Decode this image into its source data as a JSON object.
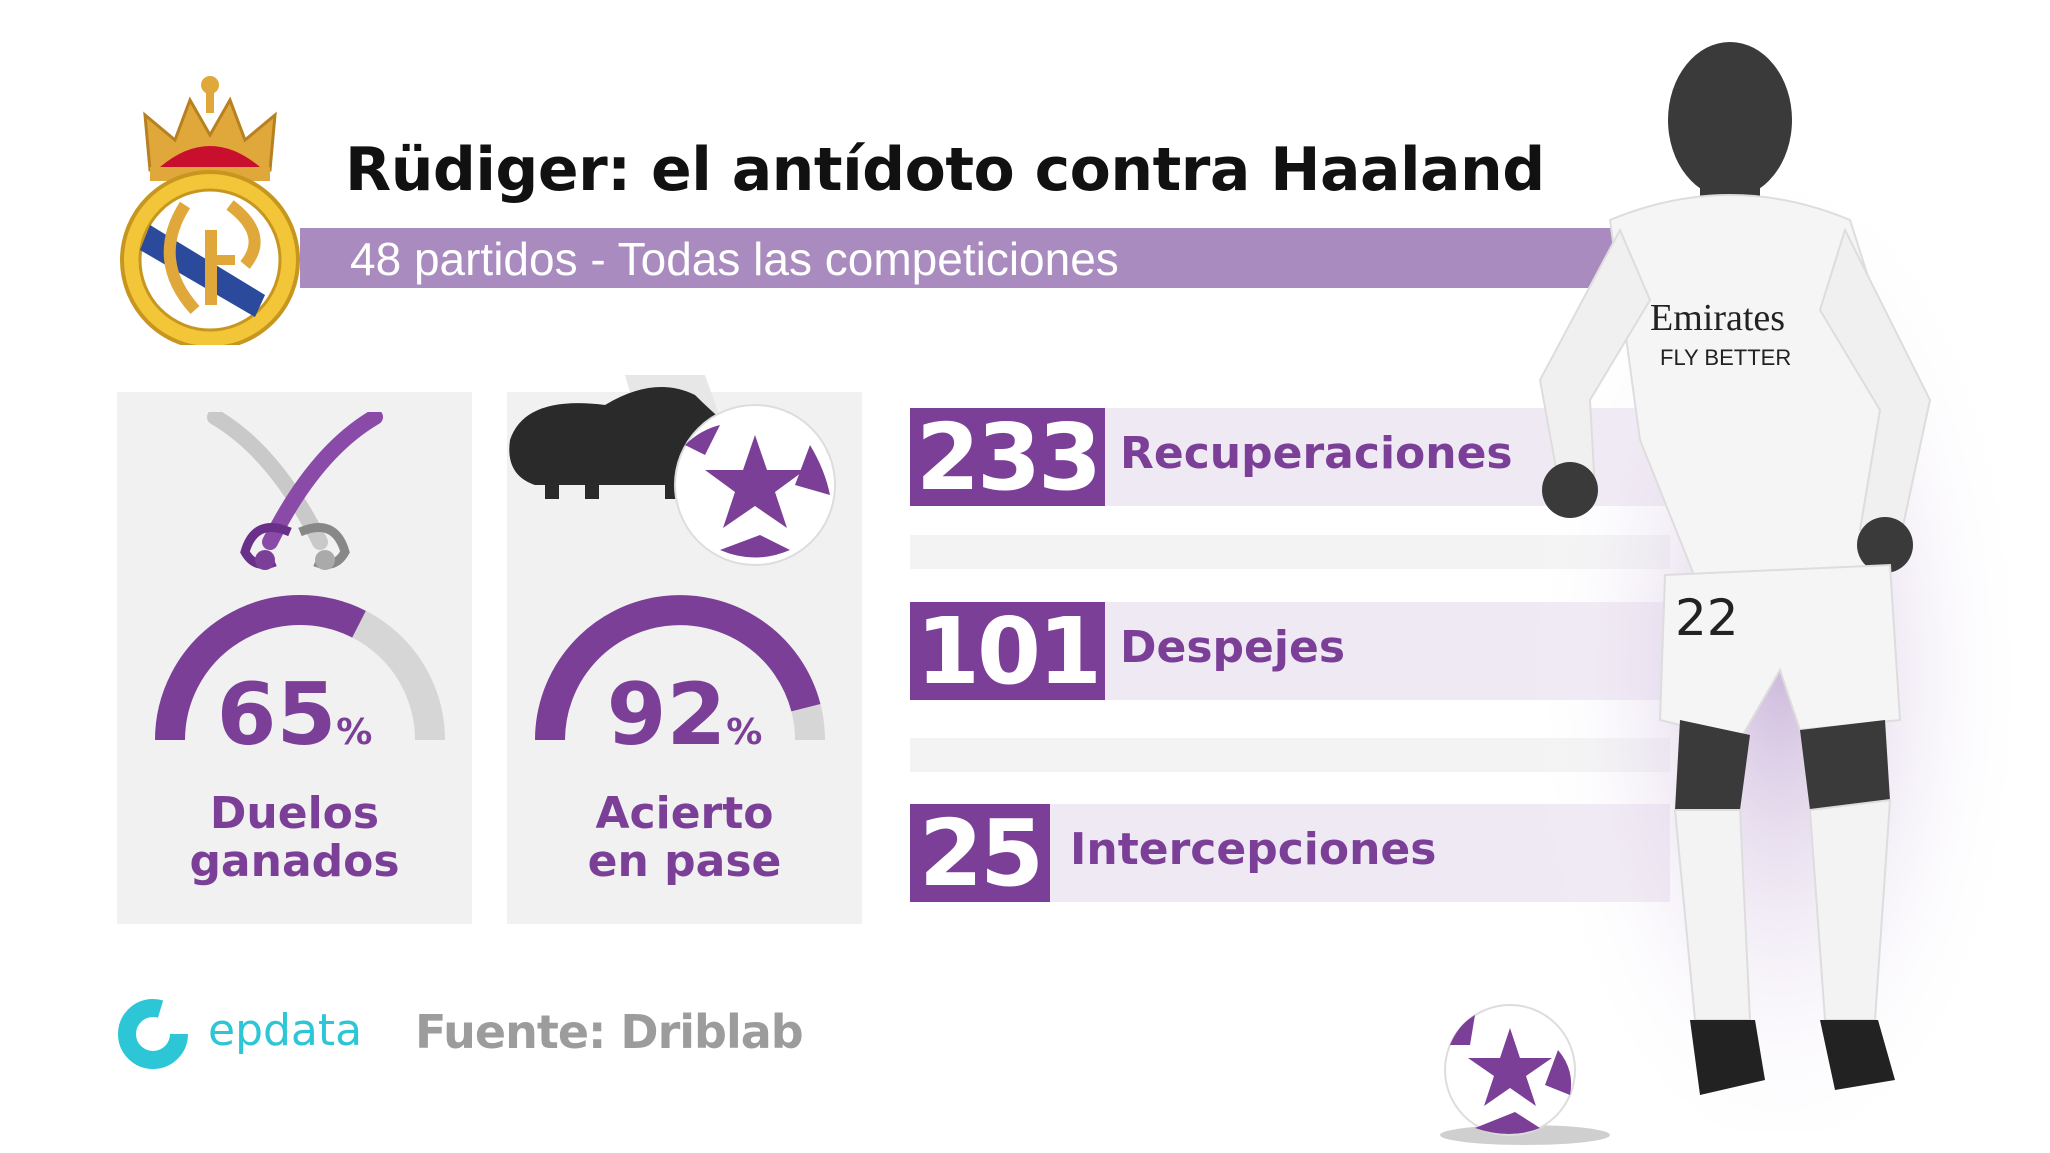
{
  "header": {
    "title": "Rüdiger: el antídoto contra Haaland",
    "subtitle": "48 partidos - Todas las competiciones"
  },
  "cards": [
    {
      "value": "65",
      "unit": "%",
      "fill": 0.65,
      "label_line1": "Duelos",
      "label_line2": "ganados",
      "icon": "crossed-swords-icon"
    },
    {
      "value": "92",
      "unit": "%",
      "fill": 0.92,
      "label_line1": "Acierto",
      "label_line2": "en pase",
      "icon": "boot-and-ball-icon"
    }
  ],
  "stats": [
    {
      "value": "233",
      "label": "Recuperaciones"
    },
    {
      "value": "101",
      "label": "Despejes"
    },
    {
      "value": "25",
      "label": "Intercepciones"
    }
  ],
  "footer": {
    "brand": "epdata",
    "source": "Fuente: Driblab"
  },
  "colors": {
    "accent": "#7b3f98",
    "accent_light": "#a98bbf",
    "gauge_bg": "#d6d6d6",
    "brand": "#2cc6d6"
  },
  "icons": [
    "real-madrid-crest-icon",
    "crossed-swords-icon",
    "boot-and-ball-icon",
    "soccer-ball-icon",
    "epdata-logo-icon",
    "player-photo"
  ]
}
